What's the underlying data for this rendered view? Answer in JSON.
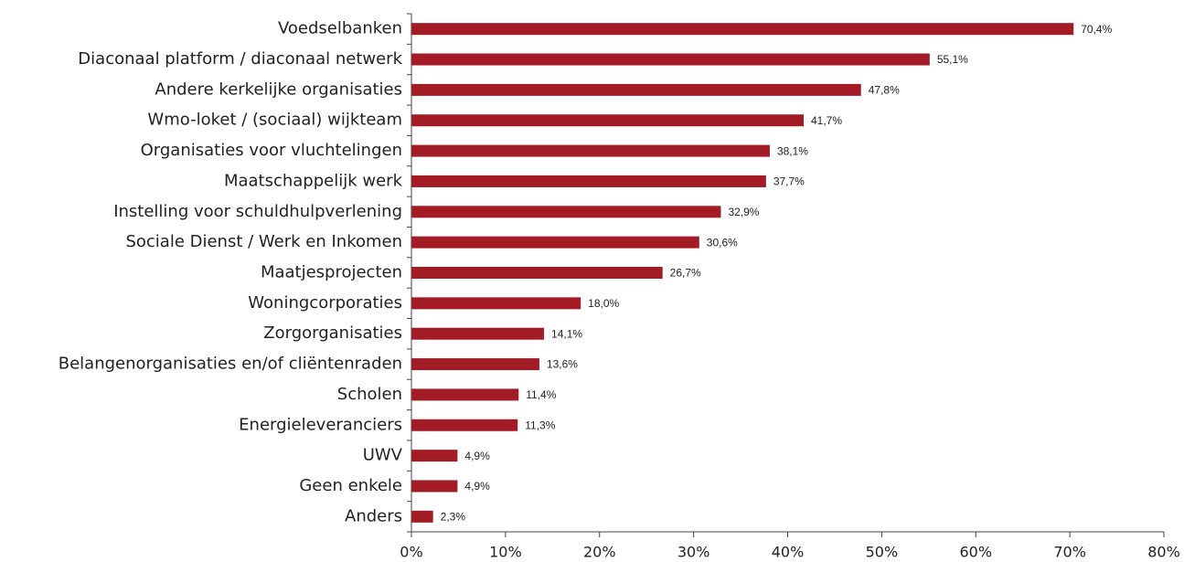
{
  "chart_data": {
    "type": "barh",
    "categories": [
      "Voedselbanken",
      "Diaconaal platform / diaconaal netwerk",
      "Andere kerkelijke organisaties",
      "Wmo-loket / (sociaal) wijkteam",
      "Organisaties voor vluchtelingen",
      "Maatschappelijk werk",
      "Instelling voor schuldhulpverlening",
      "Sociale Dienst / Werk en Inkomen",
      "Maatjesprojecten",
      "Woningcorporaties",
      "Zorgorganisaties",
      "Belangenorganisaties en/of cliëntenraden",
      "Scholen",
      "Energieleveranciers",
      "UWV",
      "Geen enkele",
      "Anders"
    ],
    "values": [
      70.4,
      55.1,
      47.8,
      41.7,
      38.1,
      37.7,
      32.9,
      30.6,
      26.7,
      18.0,
      14.1,
      13.6,
      11.4,
      11.3,
      4.9,
      4.9,
      2.3
    ],
    "value_labels": [
      "70,4%",
      "55,1%",
      "47,8%",
      "41,7%",
      "38,1%",
      "37,7%",
      "32,9%",
      "30,6%",
      "26,7%",
      "18,0%",
      "14,1%",
      "13,6%",
      "11,4%",
      "11,3%",
      "4,9%",
      "4,9%",
      "2,3%"
    ],
    "color": "#a31b25",
    "xlim": [
      0,
      80
    ],
    "xticks": [
      {
        "value": 0,
        "label": "0%"
      },
      {
        "value": 10,
        "label": "10%"
      },
      {
        "value": 20,
        "label": "20%"
      },
      {
        "value": 30,
        "label": "30%"
      },
      {
        "value": 40,
        "label": "40%"
      },
      {
        "value": 50,
        "label": "50%"
      },
      {
        "value": 60,
        "label": "60%"
      },
      {
        "value": 70,
        "label": "70%"
      },
      {
        "value": 80,
        "label": "80%"
      }
    ],
    "grid": false
  }
}
